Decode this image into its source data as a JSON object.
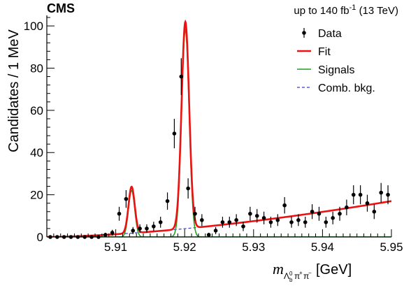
{
  "header": {
    "experiment": "CMS",
    "lumi_prefix": "up to 140 fb",
    "lumi_exp": "-1",
    "lumi_suffix": " (13 TeV)"
  },
  "colors": {
    "data": "#000000",
    "fit": "#ee1111",
    "signals": "#22a022",
    "comb_bkg": "#3a3ad8"
  },
  "chart_data": {
    "type": "scatter",
    "title": "",
    "xlabel": "m_{Λb0 π+ π−} [GeV]",
    "ylabel": "Candidates / 1 MeV",
    "xlim": [
      5.9,
      5.95
    ],
    "ylim": [
      0,
      105
    ],
    "x_ticks": [
      5.91,
      5.92,
      5.93,
      5.94,
      5.95
    ],
    "x_tick_labels": [
      "5.91",
      "5.92",
      "5.93",
      "5.94",
      "5.95"
    ],
    "y_ticks": [
      0,
      20,
      40,
      60,
      80,
      100
    ],
    "y_tick_labels": [
      "0",
      "20",
      "40",
      "60",
      "80",
      "100"
    ],
    "legend_position": "top-right",
    "legend": [
      {
        "key": "data",
        "label": "Data",
        "style": "marker"
      },
      {
        "key": "fit",
        "label": "Fit",
        "style": "line"
      },
      {
        "key": "signals",
        "label": "Signals",
        "style": "line"
      },
      {
        "key": "comb_bkg",
        "label": "Comb. bkg.",
        "style": "dashed"
      }
    ],
    "data_points": {
      "x": [
        5.9005,
        5.9015,
        5.9025,
        5.9035,
        5.9045,
        5.9055,
        5.9065,
        5.9075,
        5.9085,
        5.9095,
        5.9105,
        5.9115,
        5.9125,
        5.9135,
        5.9145,
        5.9155,
        5.9165,
        5.9175,
        5.9185,
        5.9195,
        5.9205,
        5.9215,
        5.9225,
        5.9235,
        5.9245,
        5.9255,
        5.9265,
        5.9275,
        5.9285,
        5.9295,
        5.9305,
        5.9315,
        5.9325,
        5.9335,
        5.9345,
        5.9355,
        5.9365,
        5.9375,
        5.9385,
        5.9395,
        5.9405,
        5.9415,
        5.9425,
        5.9435,
        5.9445,
        5.9455,
        5.9465,
        5.9475,
        5.9485,
        5.9495
      ],
      "y": [
        0,
        0,
        0,
        0,
        0,
        0,
        0,
        0,
        1,
        2,
        11,
        18,
        3,
        4,
        4,
        5,
        7,
        17,
        49,
        76,
        23,
        11,
        8,
        1,
        3,
        7,
        7,
        8,
        5,
        11,
        10,
        9,
        7,
        8,
        15,
        7,
        8,
        7,
        12,
        11,
        7,
        9,
        11,
        14,
        20,
        20,
        16,
        12,
        21,
        20
      ],
      "err": [
        0.6,
        0.6,
        0.6,
        0.6,
        0.6,
        0.6,
        0.6,
        0.6,
        1.0,
        1.4,
        3.3,
        4.2,
        1.7,
        2.0,
        2.0,
        2.2,
        2.6,
        4.1,
        7.0,
        8.7,
        4.8,
        3.3,
        2.8,
        1.0,
        1.7,
        2.6,
        2.6,
        2.8,
        2.2,
        3.3,
        3.2,
        3.0,
        2.6,
        2.8,
        3.9,
        2.6,
        2.8,
        2.6,
        3.5,
        3.3,
        2.6,
        3.0,
        3.3,
        3.7,
        4.5,
        4.5,
        4.0,
        3.5,
        4.6,
        4.5
      ]
    },
    "fit_model": {
      "peak1": {
        "mean": 5.9123,
        "sigma": 0.00045,
        "amplitude": 22
      },
      "peak2": {
        "mean": 5.9201,
        "sigma": 0.00055,
        "amplitude": 98
      },
      "background": {
        "threshold": 5.9,
        "end": 5.95,
        "end_value": 17
      }
    }
  }
}
